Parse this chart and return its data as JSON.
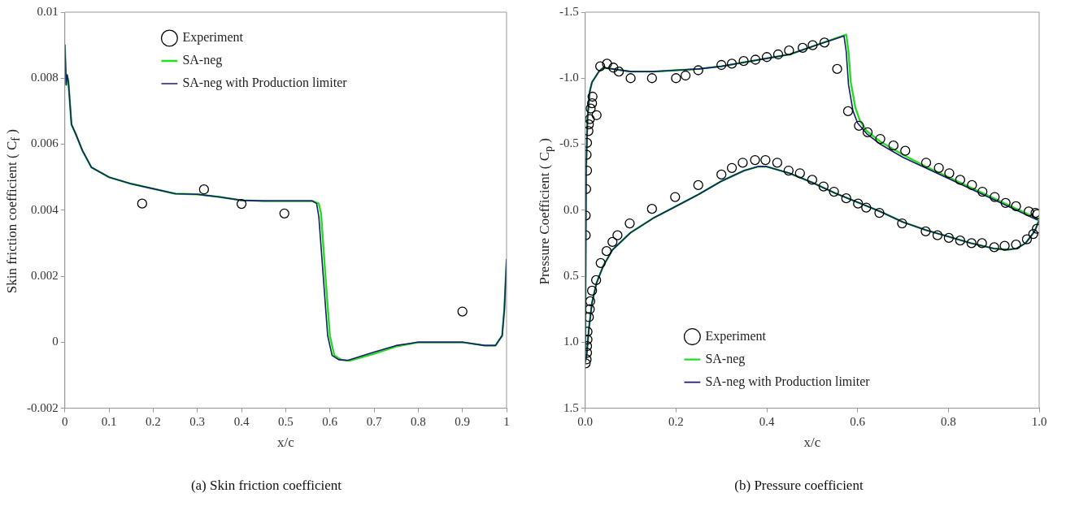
{
  "chart_data": [
    {
      "type": "line",
      "xlabel": "x/c",
      "ylabel": "Skin friction coefficient ( C$_{f}$ )",
      "xlim": [
        0,
        1
      ],
      "ylim": [
        -0.002,
        0.01
      ],
      "xticks": [
        0,
        0.1,
        0.2,
        0.3,
        0.4,
        0.5,
        0.6,
        0.7,
        0.8,
        0.9,
        1
      ],
      "yticks": [
        -0.002,
        0,
        0.002,
        0.004,
        0.006,
        0.008,
        0.01
      ],
      "grid": false,
      "legend": "top",
      "annotations": [
        "(a) Skin friction coefficient"
      ],
      "series": [
        {
          "name": "Experiment",
          "type": "scatter",
          "marker": "circle",
          "color": "#000000",
          "x": [
            0.175,
            0.315,
            0.4,
            0.497,
            0.9
          ],
          "values": [
            0.0042,
            0.00463,
            0.00419,
            0.0039,
            0.00093
          ]
        },
        {
          "name": "SA-neg",
          "type": "line",
          "marker": "none",
          "color": "#22dd22",
          "x": [
            0,
            0.003,
            0.005,
            0.008,
            0.015,
            0.025,
            0.04,
            0.06,
            0.1,
            0.15,
            0.2,
            0.25,
            0.3,
            0.35,
            0.4,
            0.45,
            0.5,
            0.56,
            0.575,
            0.58,
            0.59,
            0.6,
            0.61,
            0.625,
            0.645,
            0.7,
            0.75,
            0.8,
            0.85,
            0.9,
            0.95,
            0.975,
            0.99,
            0.995,
            1
          ],
          "values": [
            0.009,
            0.0078,
            0.0081,
            0.0079,
            0.0066,
            0.0063,
            0.0058,
            0.0053,
            0.005,
            0.0048,
            0.00465,
            0.0045,
            0.00448,
            0.0044,
            0.0043,
            0.00428,
            0.00428,
            0.00428,
            0.0042,
            0.0039,
            0.002,
            0.0002,
            -0.0004,
            -0.00053,
            -0.00056,
            -0.00035,
            -0.00013,
            0,
            0,
            0,
            -0.0001,
            -0.0001,
            0.0002,
            0.001,
            0.0025
          ]
        },
        {
          "name": "SA-neg with Production limiter",
          "type": "line",
          "marker": "none",
          "color": "#1a1a6e",
          "x": [
            0,
            0.003,
            0.005,
            0.008,
            0.015,
            0.025,
            0.04,
            0.06,
            0.1,
            0.15,
            0.2,
            0.25,
            0.3,
            0.35,
            0.4,
            0.45,
            0.5,
            0.56,
            0.57,
            0.575,
            0.585,
            0.595,
            0.605,
            0.62,
            0.64,
            0.7,
            0.75,
            0.8,
            0.85,
            0.9,
            0.95,
            0.975,
            0.99,
            0.995,
            1
          ],
          "values": [
            0.009,
            0.0078,
            0.0081,
            0.0079,
            0.0066,
            0.0063,
            0.0058,
            0.0053,
            0.005,
            0.0048,
            0.00465,
            0.0045,
            0.00448,
            0.0044,
            0.0043,
            0.00428,
            0.00428,
            0.00428,
            0.0042,
            0.0038,
            0.002,
            0.0002,
            -0.0004,
            -0.00053,
            -0.00055,
            -0.0003,
            -0.0001,
            0,
            0,
            0,
            -0.0001,
            -0.0001,
            0.0002,
            0.001,
            0.0025
          ]
        }
      ]
    },
    {
      "type": "line",
      "xlabel": "x/c",
      "ylabel": "Pressure Coefficient ( C$_{p}$ )",
      "xlim": [
        0,
        1
      ],
      "ylim": [
        1.5,
        -1.5
      ],
      "xticks": [
        {
          "value": 0,
          "label": "0.0"
        },
        0.2,
        0.4,
        0.6,
        0.8,
        {
          "value": 1,
          "label": "1.0"
        }
      ],
      "yticks": [
        -1.5,
        {
          "value": -1,
          "label": "-1.0"
        },
        -0.5,
        {
          "value": 0,
          "label": "0.0"
        },
        0.5,
        {
          "value": 1,
          "label": "1.0"
        },
        1.5
      ],
      "grid": false,
      "legend": "bottom",
      "annotations": [
        "(b) Pressure coefficient"
      ],
      "series": [
        {
          "name": "Experiment",
          "type": "scatter",
          "marker": "circle",
          "color": "#000000",
          "x": [
            0.555,
            0.527,
            0.579,
            0.603,
            0.622,
            0.65,
            0.679,
            0.705,
            0.751,
            0.779,
            0.802,
            0.826,
            0.852,
            0.875,
            0.902,
            0.926,
            0.949,
            0.977,
            0.996,
            0.001,
            0.001,
            0.002,
            0.004,
            0.003,
            0.004,
            0.007,
            0.008,
            0.01,
            0.012,
            0.015,
            0.016,
            0.025,
            0.033,
            0.048,
            0.062,
            0.074,
            0.1,
            0.147,
            0.2,
            0.221,
            0.249,
            0.3,
            0.323,
            0.349,
            0.375,
            0.4,
            0.425,
            0.449,
            0.479,
            0.501,
            0.001,
            0.003,
            0.004,
            0.004,
            0.005,
            0.005,
            0.008,
            0.01,
            0.011,
            0.015,
            0.024,
            0.034,
            0.047,
            0.06,
            0.071,
            0.098,
            0.147,
            0.198,
            0.249,
            0.3,
            0.323,
            0.347,
            0.374,
            0.397,
            0.423,
            0.448,
            0.473,
            0.5,
            0.525,
            0.548,
            0.575,
            0.601,
            0.619,
            0.648,
            0.698,
            0.75,
            0.776,
            0.801,
            0.826,
            0.851,
            0.874,
            0.901,
            0.924,
            0.949,
            0.973,
            0.987,
            0.995,
            0.992
          ],
          "values": [
            -1.07,
            -1.27,
            -0.75,
            -0.64,
            -0.59,
            -0.54,
            -0.49,
            -0.45,
            -0.36,
            -0.32,
            -0.28,
            -0.23,
            -0.19,
            -0.14,
            -0.1,
            -0.055,
            -0.03,
            0.01,
            0.03,
            0.04,
            0.19,
            -0.16,
            -0.3,
            -0.42,
            -0.51,
            -0.6,
            -0.65,
            -0.69,
            -0.77,
            -0.81,
            -0.86,
            -0.72,
            -1.09,
            -1.11,
            -1.08,
            -1.05,
            -1,
            -1,
            -1,
            -1.02,
            -1.06,
            -1.1,
            -1.11,
            -1.13,
            -1.14,
            -1.16,
            -1.18,
            -1.21,
            -1.23,
            -1.25,
            1.16,
            1.13,
            1.08,
            1.03,
            0.98,
            0.92,
            0.81,
            0.75,
            0.69,
            0.61,
            0.53,
            0.4,
            0.31,
            0.24,
            0.19,
            0.1,
            -0.01,
            -0.1,
            -0.19,
            -0.27,
            -0.32,
            -0.36,
            -0.38,
            -0.38,
            -0.36,
            -0.3,
            -0.28,
            -0.23,
            -0.18,
            -0.14,
            -0.09,
            -0.05,
            -0.02,
            0.02,
            0.1,
            0.16,
            0.19,
            0.21,
            0.23,
            0.25,
            0.25,
            0.28,
            0.27,
            0.26,
            0.22,
            0.18,
            0.14,
            0.02
          ]
        },
        {
          "name": "SA-neg",
          "type": "line",
          "marker": "none",
          "color": "#22dd22",
          "x": [
            0,
            0.002,
            0.005,
            0.01,
            0.015,
            0.03,
            0.04,
            0.06,
            0.1,
            0.15,
            0.2,
            0.25,
            0.3,
            0.35,
            0.4,
            0.45,
            0.5,
            0.575,
            0.58,
            0.585,
            0.595,
            0.605,
            0.62,
            0.65,
            0.7,
            0.75,
            0.8,
            0.85,
            0.9,
            0.95,
            1
          ],
          "values": [
            1.15,
            -0.3,
            -0.7,
            -0.9,
            -0.97,
            -1.05,
            -1.08,
            -1.07,
            -1.05,
            -1.05,
            -1.06,
            -1.07,
            -1.09,
            -1.12,
            -1.15,
            -1.18,
            -1.24,
            -1.33,
            -1.2,
            -0.97,
            -0.78,
            -0.68,
            -0.6,
            -0.52,
            -0.42,
            -0.33,
            -0.25,
            -0.17,
            -0.09,
            -0.01,
            0.07
          ]
        },
        {
          "name": "SA-neg with Production limiter",
          "type": "line",
          "marker": "none",
          "color": "#1a1a6e",
          "x": [
            0,
            0.002,
            0.005,
            0.01,
            0.015,
            0.03,
            0.04,
            0.06,
            0.1,
            0.15,
            0.2,
            0.25,
            0.3,
            0.35,
            0.4,
            0.45,
            0.5,
            0.57,
            0.575,
            0.58,
            0.59,
            0.6,
            0.62,
            0.65,
            0.7,
            0.75,
            0.8,
            0.85,
            0.9,
            0.95,
            1
          ],
          "values": [
            1.15,
            -0.3,
            -0.7,
            -0.9,
            -0.97,
            -1.05,
            -1.08,
            -1.07,
            -1.05,
            -1.05,
            -1.06,
            -1.07,
            -1.09,
            -1.12,
            -1.15,
            -1.18,
            -1.24,
            -1.32,
            -1.2,
            -0.95,
            -0.75,
            -0.66,
            -0.58,
            -0.5,
            -0.4,
            -0.32,
            -0.24,
            -0.16,
            -0.08,
            0,
            0.08
          ]
        },
        {
          "type": "line",
          "marker": "none",
          "color": "#22dd22",
          "x": [
            0,
            0.003,
            0.008,
            0.015,
            0.025,
            0.04,
            0.06,
            0.1,
            0.15,
            0.2,
            0.25,
            0.3,
            0.35,
            0.38,
            0.4,
            0.45,
            0.5,
            0.55,
            0.6,
            0.65,
            0.7,
            0.75,
            0.8,
            0.85,
            0.9,
            0.93,
            0.95,
            0.97,
            0.99,
            1
          ],
          "values": [
            1.15,
            1.1,
            0.9,
            0.7,
            0.55,
            0.42,
            0.3,
            0.17,
            0.06,
            -0.03,
            -0.12,
            -0.22,
            -0.3,
            -0.33,
            -0.33,
            -0.28,
            -0.21,
            -0.13,
            -0.06,
            0.01,
            0.09,
            0.15,
            0.2,
            0.25,
            0.29,
            0.3,
            0.29,
            0.25,
            0.16,
            0.07
          ]
        },
        {
          "type": "line",
          "marker": "none",
          "color": "#1a1a6e",
          "x": [
            0,
            0.003,
            0.008,
            0.015,
            0.025,
            0.04,
            0.06,
            0.1,
            0.15,
            0.2,
            0.25,
            0.3,
            0.35,
            0.38,
            0.4,
            0.45,
            0.5,
            0.55,
            0.6,
            0.65,
            0.7,
            0.75,
            0.8,
            0.85,
            0.9,
            0.93,
            0.95,
            0.97,
            0.99,
            1
          ],
          "values": [
            1.15,
            1.1,
            0.9,
            0.7,
            0.55,
            0.42,
            0.3,
            0.17,
            0.06,
            -0.03,
            -0.12,
            -0.22,
            -0.3,
            -0.33,
            -0.33,
            -0.28,
            -0.21,
            -0.13,
            -0.06,
            0.01,
            0.09,
            0.15,
            0.2,
            0.25,
            0.29,
            0.3,
            0.29,
            0.25,
            0.16,
            0.08
          ]
        }
      ]
    }
  ]
}
